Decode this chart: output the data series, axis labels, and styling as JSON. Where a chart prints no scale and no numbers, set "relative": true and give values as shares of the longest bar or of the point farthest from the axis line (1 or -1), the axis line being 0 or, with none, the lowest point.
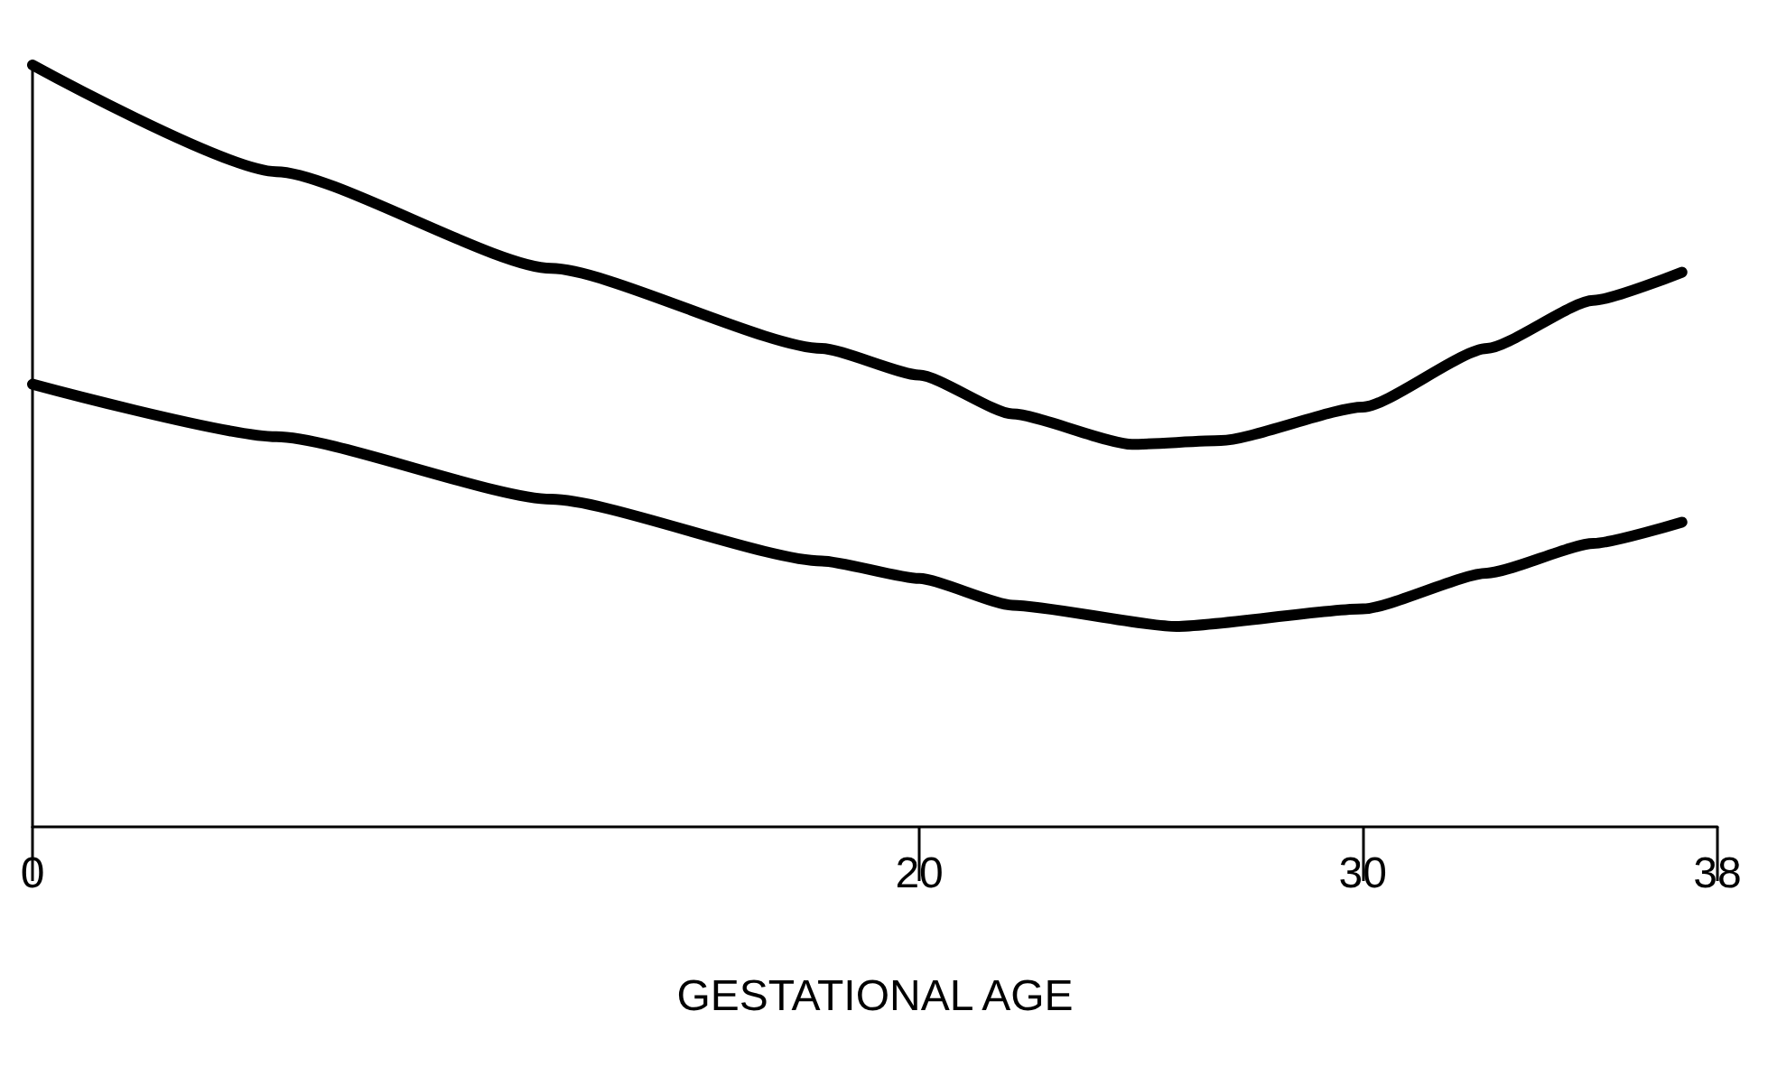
{
  "chart_data": {
    "type": "line",
    "xlabel": "GESTATIONAL AGE",
    "relative": true,
    "xlim": [
      0,
      38
    ],
    "xticks": [
      0,
      20,
      30,
      38
    ],
    "grid": false,
    "marker": "none",
    "line_style": "solid",
    "series": [
      {
        "color": "#000000",
        "x": [
          0,
          5.5,
          11.7,
          17.8,
          20,
          22.1,
          24.8,
          26.8,
          30,
          32.8,
          35.2,
          37.2
        ],
        "values": [
          1,
          0.86,
          0.733,
          0.628,
          0.593,
          0.542,
          0.502,
          0.507,
          0.551,
          0.628,
          0.691,
          0.728
        ]
      },
      {
        "color": "#000000",
        "x": [
          0,
          5.5,
          11.7,
          17.8,
          20,
          22.1,
          25.8,
          30,
          32.8,
          35.2,
          37.2
        ],
        "values": [
          0.581,
          0.512,
          0.43,
          0.349,
          0.326,
          0.291,
          0.263,
          0.286,
          0.333,
          0.372,
          0.4
        ]
      }
    ]
  }
}
